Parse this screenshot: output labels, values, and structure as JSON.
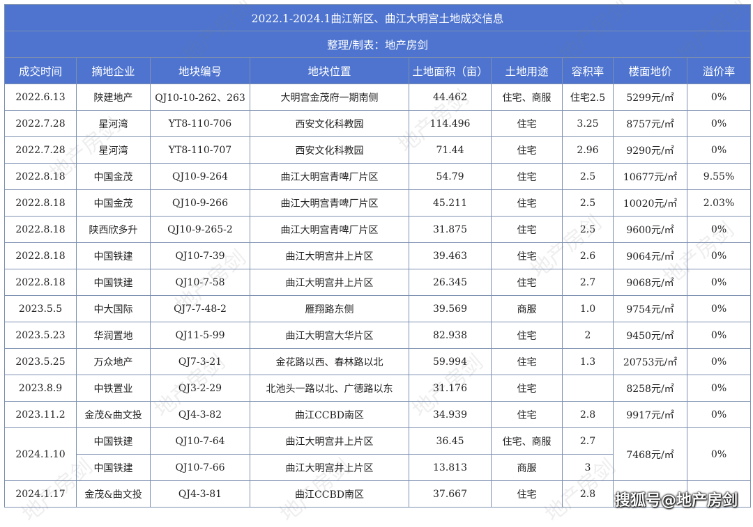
{
  "title": "2022.1-2024.1曲江新区、曲江大明宫土地成交信息",
  "subtitle": "整理/制表：地产房剑",
  "headers": [
    "成交时间",
    "摘地企业",
    "地块编号",
    "地块位置",
    "土地面积（亩）",
    "土地用途",
    "容积率",
    "楼面地价",
    "溢价率"
  ],
  "rows": [
    [
      "2022.6.13",
      "陕建地产",
      "QJ10-10-262、263",
      "大明宫金茂府一期南侧",
      "44.462",
      "住宅、商服",
      "住宅2.5",
      "5299元/㎡",
      "0%"
    ],
    [
      "2022.7.28",
      "星河湾",
      "YT8-110-706",
      "西安文化科教园",
      "114.496",
      "住宅",
      "3.25",
      "8757元/㎡",
      "0%"
    ],
    [
      "2022.7.28",
      "星河湾",
      "YT8-110-707",
      "西安文化科教园",
      "71.44",
      "住宅",
      "2.96",
      "9290元/㎡",
      "0%"
    ],
    [
      "2022.8.18",
      "中国金茂",
      "QJ10-9-264",
      "曲江大明宫青啤厂片区",
      "54.79",
      "住宅",
      "2.5",
      "10677元/㎡",
      "9.55%"
    ],
    [
      "2022.8.18",
      "中国金茂",
      "QJ10-9-266",
      "曲江大明宫青啤厂片区",
      "45.211",
      "住宅",
      "2.5",
      "10020元/㎡",
      "2.03%"
    ],
    [
      "2022.8.18",
      "陕西欣多升",
      "QJ10-9-265-2",
      "曲江大明宫青啤厂片区",
      "31.875",
      "住宅",
      "2.5",
      "9600元/㎡",
      "0%"
    ],
    [
      "2022.8.18",
      "中国铁建",
      "QJ10-7-39",
      "曲江大明宫井上片区",
      "39.463",
      "住宅",
      "2.6",
      "9064元/㎡",
      "0%"
    ],
    [
      "2022.8.18",
      "中国铁建",
      "QJ10-7-58",
      "曲江大明宫井上片区",
      "26.345",
      "住宅",
      "2.7",
      "9068元/㎡",
      "0%"
    ],
    [
      "2023.5.5",
      "中大国际",
      "QJ7-7-48-2",
      "雁翔路东侧",
      "39.569",
      "商服",
      "1.0",
      "9754元/㎡",
      "0%"
    ],
    [
      "2023.5.23",
      "华润置地",
      "QJ11-5-99",
      "曲江大明宫大华片区",
      "82.938",
      "住宅",
      "2",
      "9450元/㎡",
      "0%"
    ],
    [
      "2023.5.25",
      "万众地产",
      "QJ7-3-21",
      "金花路以西、春林路以北",
      "59.994",
      "住宅",
      "1.3",
      "20753元/㎡",
      "0%"
    ],
    [
      "2023.8.9",
      "中铁置业",
      "QJ3-2-29",
      "北池头一路以北、广德路以东",
      "31.176",
      "住宅",
      "",
      "8258元/㎡",
      "0%"
    ],
    [
      "2023.11.2",
      "金茂&曲文投",
      "QJ4-3-82",
      "曲江CCBD南区",
      "34.939",
      "住宅",
      "2.8",
      "9917元/㎡",
      "0%"
    ]
  ],
  "merged": {
    "date": "2024.1.10",
    "price": "7468元/㎡",
    "premium": "0%",
    "rows": [
      [
        "中国铁建",
        "QJ10-7-64",
        "曲江大明宫井上片区",
        "36.45",
        "住宅、商服",
        "2.7"
      ],
      [
        "中国铁建",
        "QJ10-7-66",
        "曲江大明宫井上片区",
        "13.813",
        "商服",
        "3"
      ]
    ]
  },
  "last_row": [
    "2024.1.17",
    "金茂&曲文投",
    "QJ4-3-81",
    "曲江CCBD南区",
    "37.667",
    "住宅",
    "2.8",
    "",
    ""
  ],
  "watermark": "地产房剑",
  "corner_mark": "搜狐号@地产房剑",
  "colors": {
    "header_bg": "#4e74cf",
    "header_text": "#ffffff",
    "border": "#7c8fb0"
  }
}
